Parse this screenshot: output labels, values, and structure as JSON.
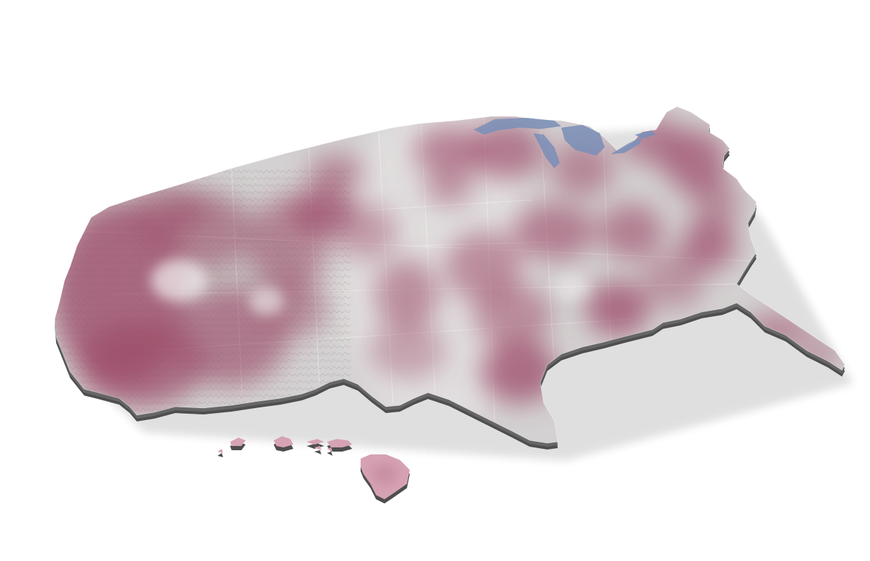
{
  "map": {
    "style": "3D extruded relief map with heatmap overlay",
    "regions": [
      "contiguous-united-states",
      "hawaii"
    ],
    "colors": {
      "background": "#ffffff",
      "land_base": "#d4d2d2",
      "land_light": "#e6e4e4",
      "heat": "#9c4a68",
      "heat_light": "#c98aa0",
      "extrusion": "#5a5a5a",
      "water": "#7a8fb8"
    },
    "features": {
      "terrain_relief": true,
      "state_borders_visible": true,
      "great_lakes_visible": true,
      "legend": false,
      "title": ""
    }
  }
}
